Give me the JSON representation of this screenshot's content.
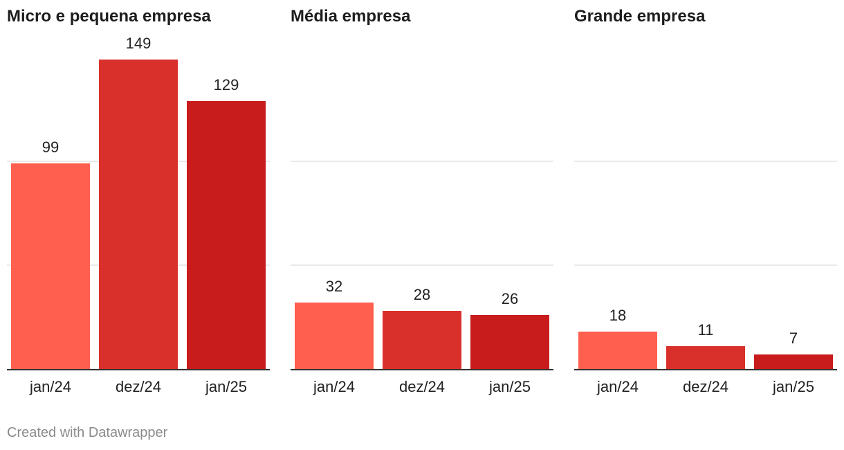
{
  "footer": {
    "credit": "Created with Datawrapper"
  },
  "colors": {
    "jan24": "#ff5f4f",
    "dez24": "#d9302b",
    "jan25": "#c81c1c",
    "grid": "#e3e3e3",
    "baseline": "#333333"
  },
  "chart_data": [
    {
      "type": "bar",
      "title": "Micro e pequena empresa",
      "categories": [
        "jan/24",
        "dez/24",
        "jan/25"
      ],
      "values": [
        99,
        149,
        129
      ],
      "ylim": [
        0,
        150
      ],
      "gridlines": [
        50,
        100
      ],
      "grid": true
    },
    {
      "type": "bar",
      "title": "Média empresa",
      "categories": [
        "jan/24",
        "dez/24",
        "jan/25"
      ],
      "values": [
        32,
        28,
        26
      ],
      "ylim": [
        0,
        150
      ],
      "gridlines": [
        50,
        100
      ],
      "grid": true
    },
    {
      "type": "bar",
      "title": "Grande empresa",
      "categories": [
        "jan/24",
        "dez/24",
        "jan/25"
      ],
      "values": [
        18,
        11,
        7
      ],
      "ylim": [
        0,
        150
      ],
      "gridlines": [
        50,
        100
      ],
      "grid": true
    }
  ]
}
